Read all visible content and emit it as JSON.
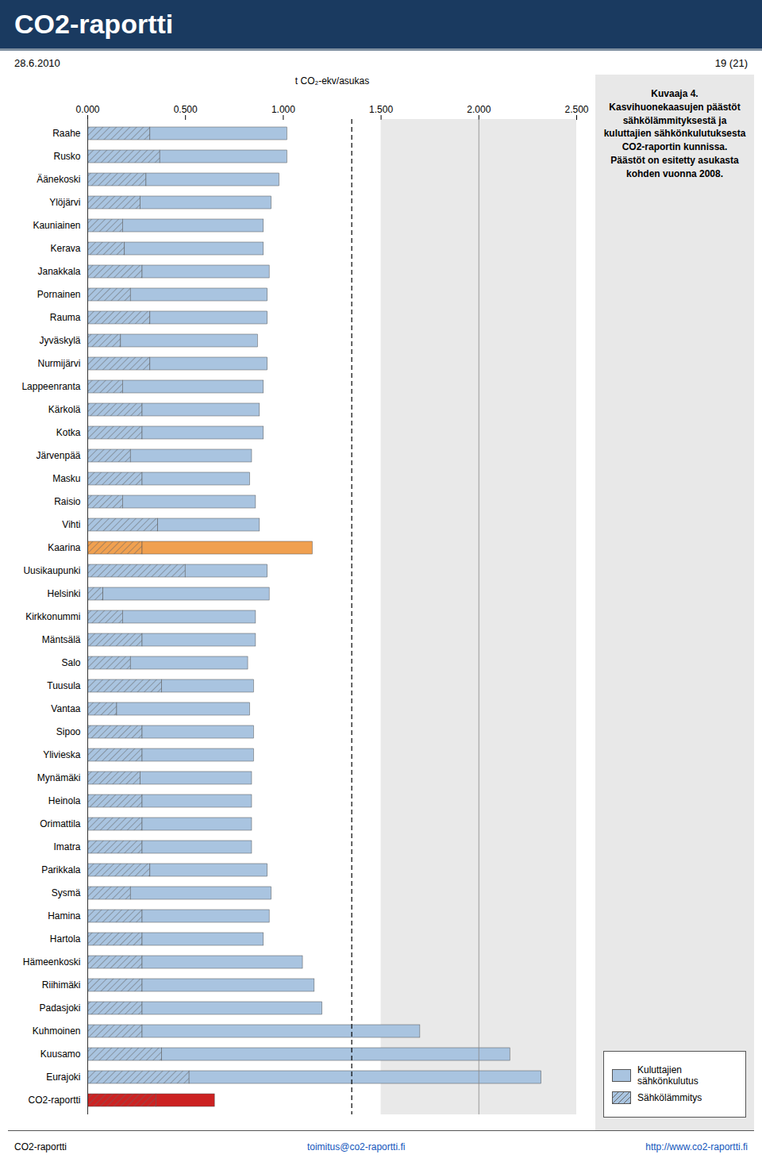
{
  "chart_data": {
    "type": "bar",
    "orientation": "horizontal",
    "stacked": true,
    "title": "CO2-raportti",
    "categories": [
      "Raahe",
      "Rusko",
      "Äänekoski",
      "Ylöjärvi",
      "Kauniainen",
      "Kerava",
      "Janakkala",
      "Pornainen",
      "Rauma",
      "Jyväskylä",
      "Nurmijärvi",
      "Lappeenranta",
      "Kärkolä",
      "Kotka",
      "Järvenpää",
      "Masku",
      "Raisio",
      "Vihti",
      "Kaarina",
      "Uusikaupunki",
      "Helsinki",
      "Kirkkonummi",
      "Mäntsälä",
      "Salo",
      "Tuusula",
      "Vantaa",
      "Sipoo",
      "Ylivieska",
      "Mynämäki",
      "Heinola",
      "Orimattila",
      "Imatra",
      "Parikkala",
      "Sysmä",
      "Hamina",
      "Hartola",
      "Hämeenkoski",
      "Riihimäki",
      "Padasjoki",
      "Kuhmoinen",
      "Kuusamo",
      "Eurajoki",
      "CO2-raportti"
    ],
    "series": [
      {
        "name": "Sähkölämmitys",
        "color": "#a9c4e0",
        "values": [
          0.32,
          0.37,
          0.3,
          0.27,
          0.18,
          0.19,
          0.28,
          0.22,
          0.32,
          0.17,
          0.32,
          0.18,
          0.28,
          0.28,
          0.22,
          0.28,
          0.18,
          0.36,
          0.28,
          0.5,
          0.08,
          0.18,
          0.28,
          0.22,
          0.38,
          0.15,
          0.28,
          0.28,
          0.27,
          0.28,
          0.28,
          0.28,
          0.32,
          0.22,
          0.28,
          0.28,
          0.28,
          0.28,
          0.28,
          0.28,
          0.38,
          0.52,
          0.35
        ],
        "colors": [
          "#a9c4e0",
          "#a9c4e0",
          "#a9c4e0",
          "#a9c4e0",
          "#a9c4e0",
          "#a9c4e0",
          "#a9c4e0",
          "#a9c4e0",
          "#a9c4e0",
          "#a9c4e0",
          "#a9c4e0",
          "#a9c4e0",
          "#a9c4e0",
          "#a9c4e0",
          "#a9c4e0",
          "#a9c4e0",
          "#a9c4e0",
          "#a9c4e0",
          "#f0a050",
          "#a9c4e0",
          "#a9c4e0",
          "#a9c4e0",
          "#a9c4e0",
          "#a9c4e0",
          "#a9c4e0",
          "#a9c4e0",
          "#a9c4e0",
          "#a9c4e0",
          "#a9c4e0",
          "#a9c4e0",
          "#a9c4e0",
          "#a9c4e0",
          "#a9c4e0",
          "#a9c4e0",
          "#a9c4e0",
          "#a9c4e0",
          "#a9c4e0",
          "#a9c4e0",
          "#a9c4e0",
          "#a9c4e0",
          "#a9c4e0",
          "#a9c4e0",
          "#cc2222"
        ]
      },
      {
        "name": "Kuluttajien sähkönkulutus",
        "color": "#a9c4e0",
        "values": [
          0.7,
          0.65,
          0.68,
          0.67,
          0.72,
          0.71,
          0.65,
          0.7,
          0.6,
          0.7,
          0.6,
          0.72,
          0.6,
          0.62,
          0.62,
          0.55,
          0.68,
          0.52,
          0.87,
          0.42,
          0.85,
          0.68,
          0.58,
          0.6,
          0.47,
          0.68,
          0.57,
          0.57,
          0.57,
          0.56,
          0.56,
          0.56,
          0.6,
          0.72,
          0.65,
          0.62,
          0.82,
          0.88,
          0.92,
          1.42,
          1.78,
          1.8,
          0.3
        ],
        "colors": [
          "#a9c4e0",
          "#a9c4e0",
          "#a9c4e0",
          "#a9c4e0",
          "#a9c4e0",
          "#a9c4e0",
          "#a9c4e0",
          "#a9c4e0",
          "#a9c4e0",
          "#a9c4e0",
          "#a9c4e0",
          "#a9c4e0",
          "#a9c4e0",
          "#a9c4e0",
          "#a9c4e0",
          "#a9c4e0",
          "#a9c4e0",
          "#a9c4e0",
          "#f0a050",
          "#a9c4e0",
          "#a9c4e0",
          "#a9c4e0",
          "#a9c4e0",
          "#a9c4e0",
          "#a9c4e0",
          "#a9c4e0",
          "#a9c4e0",
          "#a9c4e0",
          "#a9c4e0",
          "#a9c4e0",
          "#a9c4e0",
          "#a9c4e0",
          "#a9c4e0",
          "#a9c4e0",
          "#a9c4e0",
          "#a9c4e0",
          "#a9c4e0",
          "#a9c4e0",
          "#a9c4e0",
          "#a9c4e0",
          "#a9c4e0",
          "#a9c4e0",
          "#cc2222"
        ]
      }
    ],
    "x_label": "t CO₂-ekv/asukas",
    "xlim": [
      0.0,
      2.5
    ],
    "xticks": [
      {
        "value": 0.0,
        "label": "0.000"
      },
      {
        "value": 0.5,
        "label": "0.500"
      },
      {
        "value": 1.0,
        "label": "1.000"
      },
      {
        "value": 1.5,
        "label": "1.500"
      },
      {
        "value": 2.0,
        "label": "2.000"
      },
      {
        "value": 2.5,
        "label": "2.500"
      }
    ],
    "reference_lines": [
      {
        "value": 1.35,
        "line_style": "dashed"
      },
      {
        "value": 2.0,
        "line_style": "solid"
      }
    ],
    "shaded_range": [
      1.5,
      2.5
    ],
    "grid": false,
    "legend": "right",
    "annotations": [
      "28.6.2010",
      "19 (21)",
      "Kuvaaja 4. Kasvihuonekaasujen päästöt sähkölämmityksestä ja\nkuluttajien sähkönkulutuksesta CO2-raportin kunnissa.\nPäästöt on esitetty asukasta kohden vuonna 2008.",
      "CO2-raportti",
      "toimitus@co2-raportti.fi",
      "http://www.co2-raportti.fi"
    ]
  }
}
